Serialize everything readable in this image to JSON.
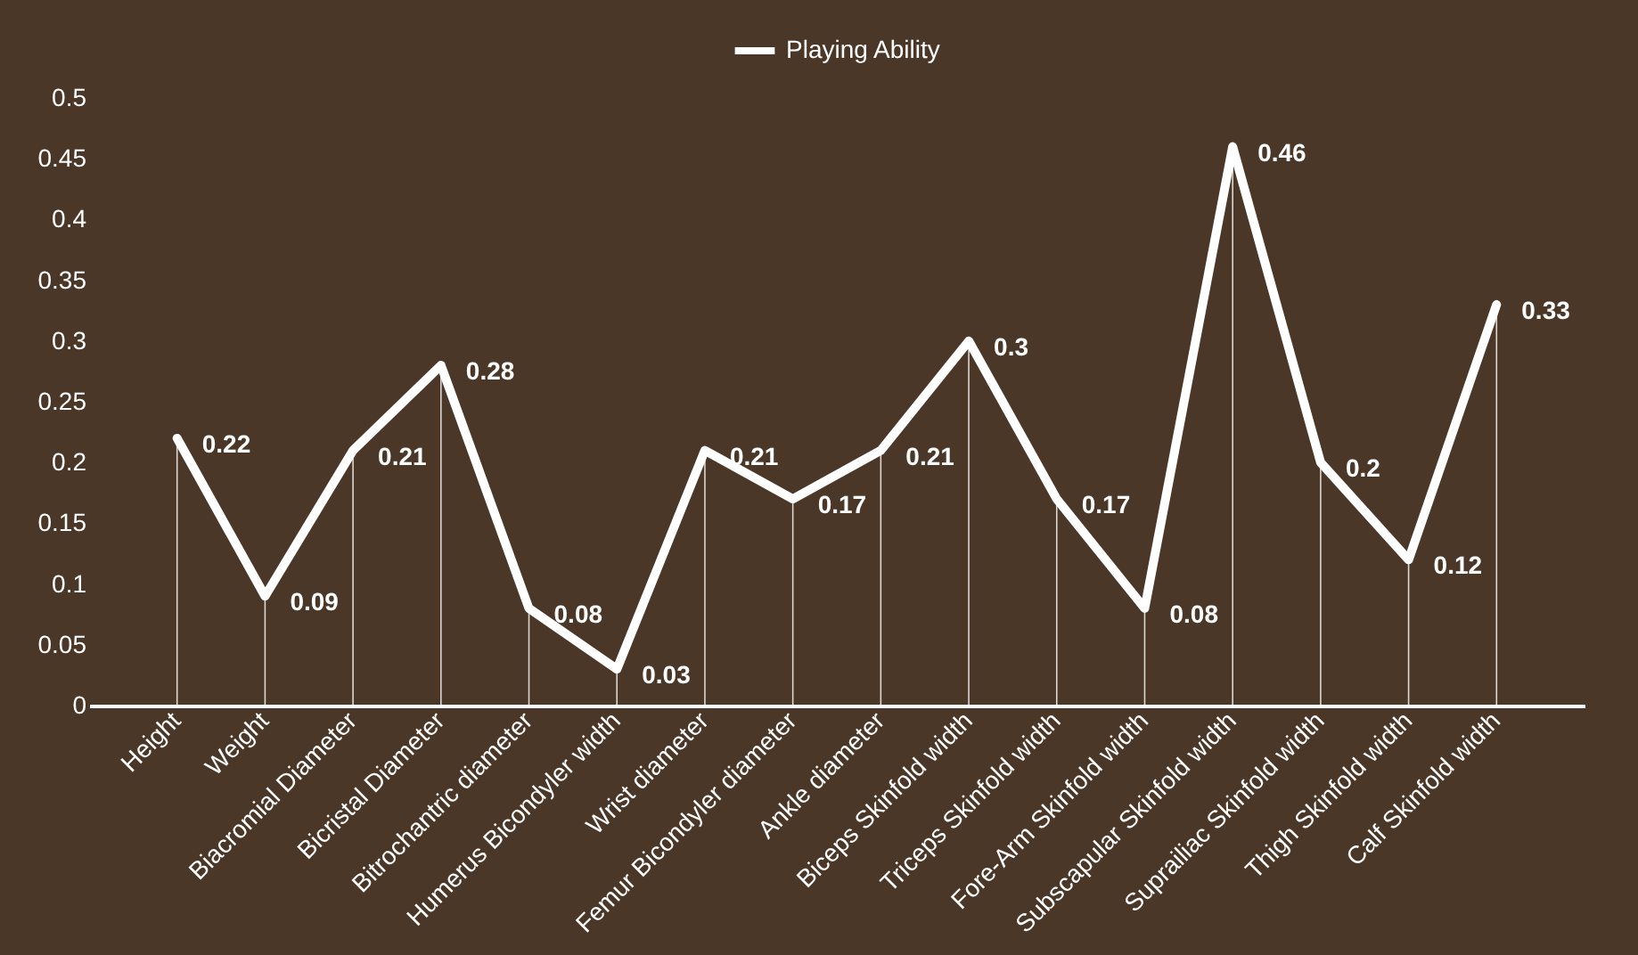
{
  "chart_data": {
    "type": "line",
    "categories": [
      "Height",
      "Weight",
      "Biacromial Diameter",
      "Bicristal Diameter",
      "Bitrochantric diameter",
      "Humerus Bicondyler width",
      "Wrist diameter",
      "Femur Bicondyler diameter",
      "Ankle diameter",
      "Biceps Skinfold width",
      "Triceps Skinfold width",
      "Fore-Arm Skinfold width",
      "Subscapular Skinfold width",
      "Suprailiac Skinfold width",
      "Thigh Skinfold width",
      "Calf Skinfold width"
    ],
    "series": [
      {
        "name": "Playing Ability",
        "color": "#ffffff",
        "values": [
          0.22,
          0.09,
          0.21,
          0.28,
          0.08,
          0.03,
          0.21,
          0.17,
          0.21,
          0.3,
          0.17,
          0.08,
          0.46,
          0.2,
          0.12,
          0.33
        ]
      }
    ],
    "ylim": [
      0,
      0.5
    ],
    "yticks": [
      0,
      0.05,
      0.1,
      0.15,
      0.2,
      0.25,
      0.3,
      0.35,
      0.4,
      0.45,
      0.5
    ],
    "data_labels": true,
    "legend": "top",
    "grid": "x",
    "marker": "none",
    "line_style": "solid"
  }
}
